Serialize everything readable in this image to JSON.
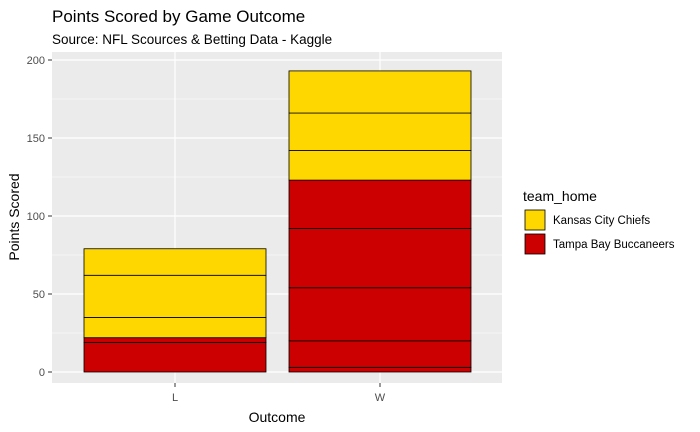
{
  "chart_data": {
    "type": "bar",
    "stacked": true,
    "title": "Points Scored by Game Outcome",
    "subtitle": "Source: NFL Scources & Betting Data - Kaggle",
    "xlabel": "Outcome",
    "ylabel": "Points Scored",
    "categories": [
      "L",
      "W"
    ],
    "ylim": [
      0,
      200
    ],
    "yticks": [
      0,
      50,
      100,
      150,
      200
    ],
    "grid": true,
    "legend": {
      "title": "team_home",
      "position": "right",
      "entries": [
        "Kansas City Chiefs",
        "Tampa Bay Buccaneers"
      ]
    },
    "colors": {
      "Kansas City Chiefs": "#FFD700",
      "Tampa Bay Buccaneers": "#CC0000",
      "panel": "#EBEBEB",
      "grid": "#FFFFFF",
      "outline": "#000000"
    },
    "stacks": {
      "L": [
        {
          "team": "Tampa Bay Buccaneers",
          "value": 19
        },
        {
          "team": "Tampa Bay Buccaneers",
          "value": 3
        },
        {
          "team": "Kansas City Chiefs",
          "value": 13
        },
        {
          "team": "Kansas City Chiefs",
          "value": 27
        },
        {
          "team": "Kansas City Chiefs",
          "value": 17
        }
      ],
      "W": [
        {
          "team": "Tampa Bay Buccaneers",
          "value": 3
        },
        {
          "team": "Tampa Bay Buccaneers",
          "value": 17
        },
        {
          "team": "Tampa Bay Buccaneers",
          "value": 34
        },
        {
          "team": "Tampa Bay Buccaneers",
          "value": 38
        },
        {
          "team": "Tampa Bay Buccaneers",
          "value": 31
        },
        {
          "team": "Kansas City Chiefs",
          "value": 19
        },
        {
          "team": "Kansas City Chiefs",
          "value": 24
        },
        {
          "team": "Kansas City Chiefs",
          "value": 27
        }
      ]
    },
    "series": [
      {
        "name": "Kansas City Chiefs",
        "values": [
          57,
          70
        ]
      },
      {
        "name": "Tampa Bay Buccaneers",
        "values": [
          22,
          123
        ]
      }
    ]
  }
}
